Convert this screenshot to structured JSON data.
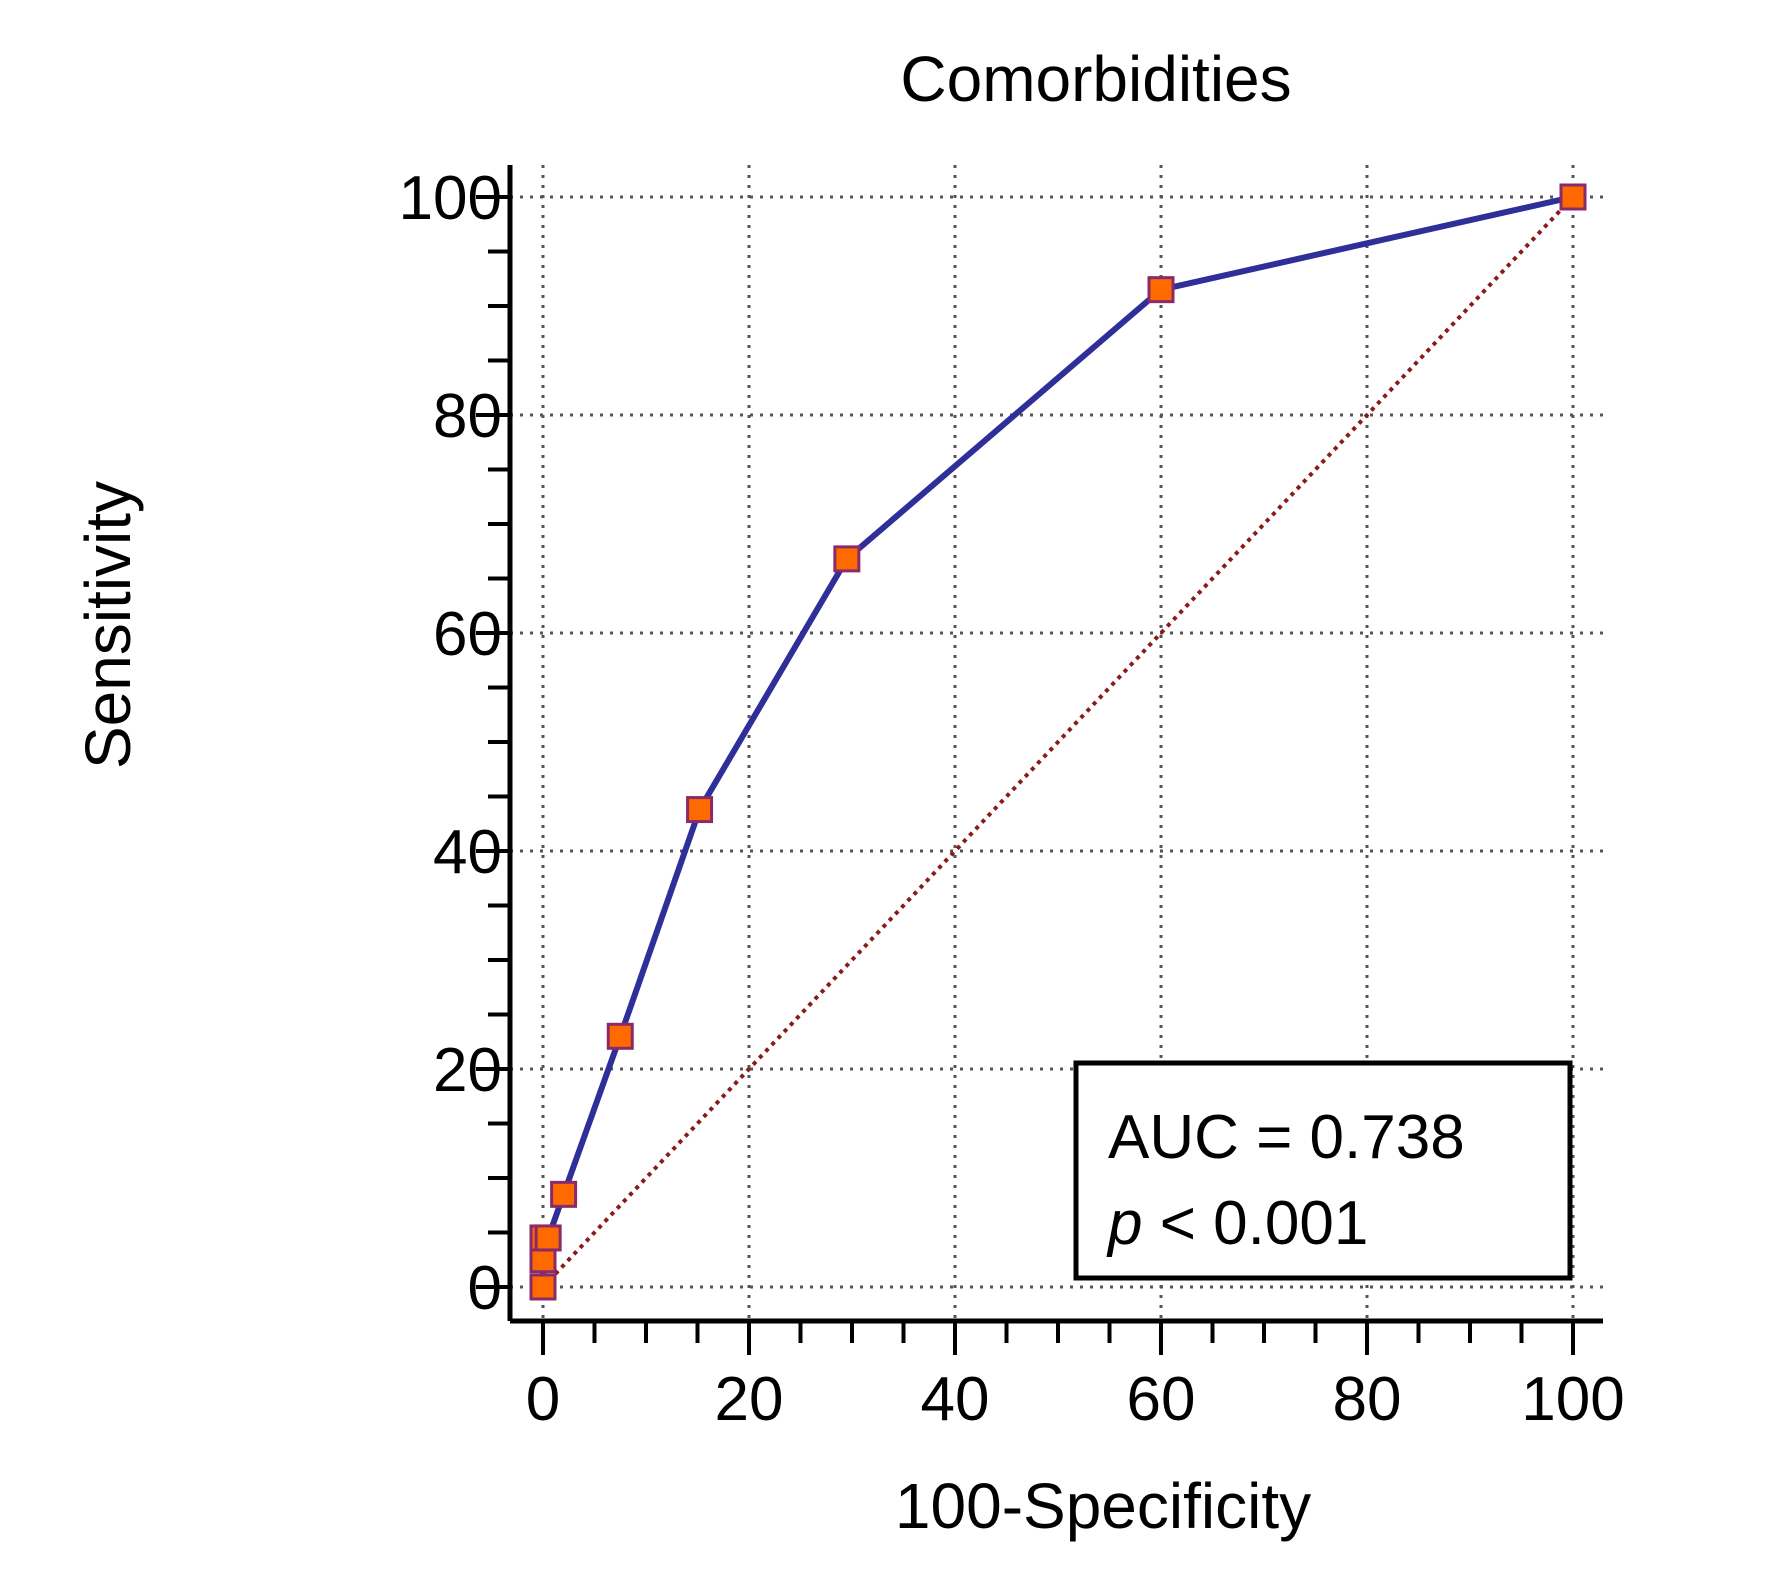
{
  "chart_data": {
    "type": "line",
    "title": "Comorbidities",
    "xlabel": "100-Specificity",
    "ylabel": "Sensitivity",
    "xlim": [
      0,
      100
    ],
    "ylim": [
      0,
      100
    ],
    "grid": true,
    "x_ticks": [
      "0",
      "20",
      "40",
      "60",
      "80",
      "100"
    ],
    "y_ticks": [
      "0",
      "20",
      "40",
      "60",
      "80",
      "100"
    ],
    "series": [
      {
        "points": [
          {
            "x": 0,
            "y": 0
          },
          {
            "x": 0,
            "y": 2.5
          },
          {
            "x": 0,
            "y": 4.5
          },
          {
            "x": 0.5,
            "y": 4.5
          },
          {
            "x": 2,
            "y": 8.5
          },
          {
            "x": 7.5,
            "y": 23
          },
          {
            "x": 15.2,
            "y": 43.8
          },
          {
            "x": 29.5,
            "y": 66.8
          },
          {
            "x": 60,
            "y": 91.5
          },
          {
            "x": 100,
            "y": 100
          }
        ]
      }
    ],
    "reference_line": {
      "from": [
        0,
        0
      ],
      "to": [
        100,
        100
      ]
    },
    "annotation": {
      "auc_text": "AUC = 0.738",
      "p_symbol": "p",
      "p_text": " < 0.001"
    },
    "colors": {
      "curve": "#2f2f9a",
      "marker_fill": "#ff6a00",
      "marker_edge": "#8b2a6b",
      "reference": "#8b1a1a",
      "grid": "#555555",
      "axis": "#000000"
    }
  }
}
